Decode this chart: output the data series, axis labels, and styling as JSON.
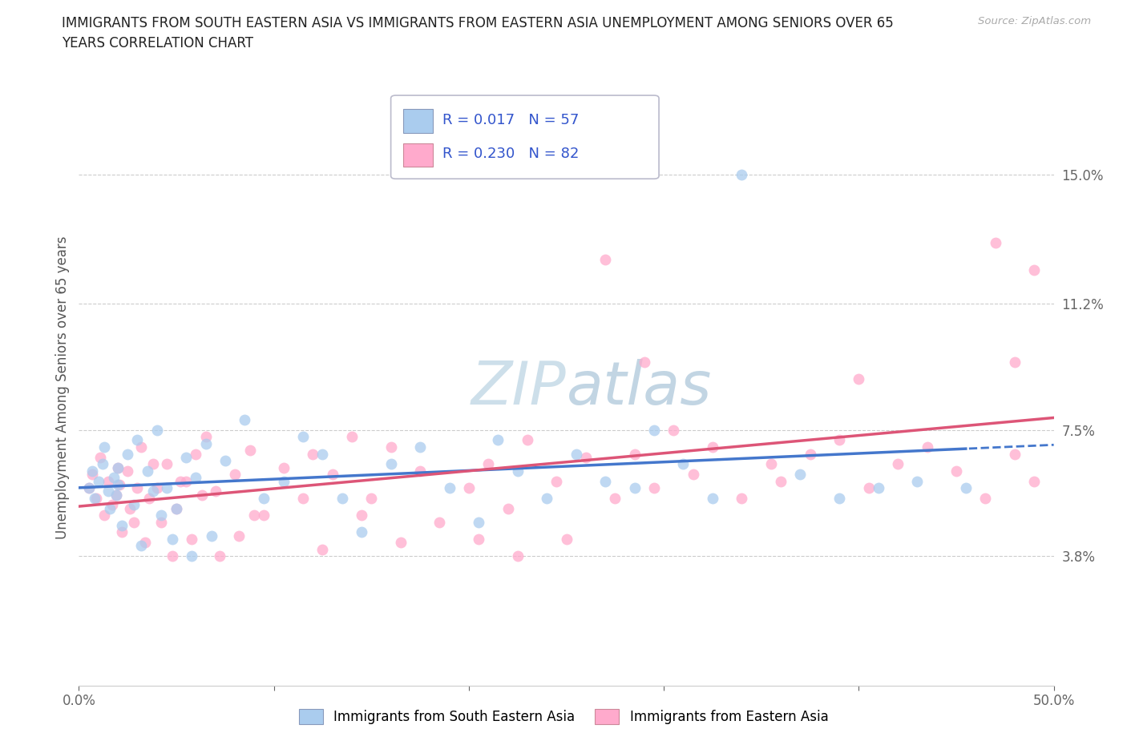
{
  "title_line1": "IMMIGRANTS FROM SOUTH EASTERN ASIA VS IMMIGRANTS FROM EASTERN ASIA UNEMPLOYMENT AMONG SENIORS OVER 65",
  "title_line2": "YEARS CORRELATION CHART",
  "source_text": "Source: ZipAtlas.com",
  "ylabel": "Unemployment Among Seniors over 65 years",
  "xlim": [
    0.0,
    0.5
  ],
  "ylim": [
    0.0,
    0.175
  ],
  "yticks": [
    0.0,
    0.038,
    0.075,
    0.112,
    0.15
  ],
  "ytick_labels": [
    "",
    "3.8%",
    "7.5%",
    "11.2%",
    "15.0%"
  ],
  "xticks": [
    0.0,
    0.1,
    0.2,
    0.3,
    0.4,
    0.5
  ],
  "xtick_labels": [
    "0.0%",
    "",
    "",
    "",
    "",
    "50.0%"
  ],
  "color_sea": "#aaccee",
  "color_ea": "#ffaacc",
  "trendline_color_sea": "#4477cc",
  "trendline_color_ea": "#dd5577",
  "blue_text": "#3355cc",
  "grid_color": "#cccccc",
  "watermark_color": "#d8e8f0",
  "sea_intercept": 0.055,
  "sea_slope": 0.002,
  "ea_intercept": 0.048,
  "ea_slope": 0.052
}
